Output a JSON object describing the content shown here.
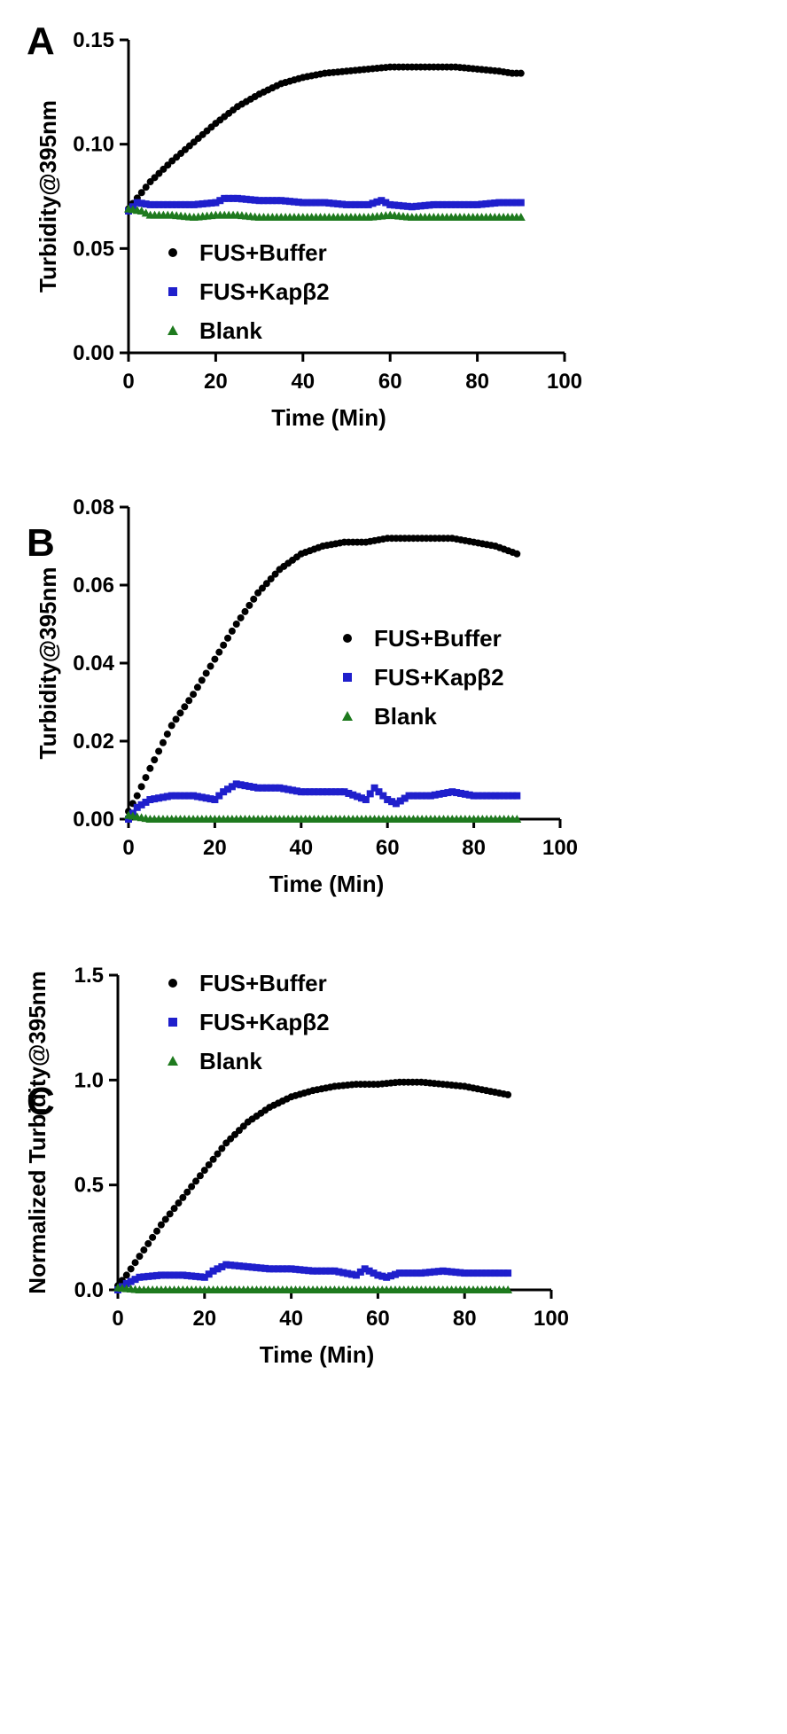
{
  "chart_data": [
    {
      "panel": "A",
      "type": "scatter",
      "xlabel": "Time (Min)",
      "ylabel": "Turbidity@395nm",
      "xlim": [
        0,
        100
      ],
      "ylim": [
        0,
        0.15
      ],
      "xticks": [
        "0",
        "20",
        "40",
        "60",
        "80",
        "100"
      ],
      "yticks": [
        "0.00",
        "0.05",
        "0.10",
        "0.15"
      ],
      "legend_position": "bottom-left",
      "series": [
        {
          "name": "FUS+Buffer",
          "marker": "circle",
          "color": "#000000",
          "x": [
            0,
            5,
            10,
            15,
            20,
            25,
            30,
            35,
            40,
            45,
            50,
            55,
            60,
            65,
            70,
            75,
            80,
            85,
            88,
            90
          ],
          "y": [
            0.069,
            0.082,
            0.092,
            0.101,
            0.11,
            0.118,
            0.124,
            0.129,
            0.132,
            0.134,
            0.135,
            0.136,
            0.137,
            0.137,
            0.137,
            0.137,
            0.136,
            0.135,
            0.134,
            0.134
          ]
        },
        {
          "name": "FUS+Kapβ2",
          "marker": "square",
          "color": "#1f1fcc",
          "x": [
            0,
            2,
            5,
            10,
            15,
            20,
            22,
            25,
            30,
            35,
            40,
            45,
            50,
            55,
            58,
            60,
            65,
            70,
            75,
            80,
            85,
            90
          ],
          "y": [
            0.068,
            0.072,
            0.071,
            0.071,
            0.071,
            0.072,
            0.074,
            0.074,
            0.073,
            0.073,
            0.072,
            0.072,
            0.071,
            0.071,
            0.073,
            0.071,
            0.07,
            0.071,
            0.071,
            0.071,
            0.072,
            0.072
          ]
        },
        {
          "name": "Blank",
          "marker": "triangle",
          "color": "#1e7a1e",
          "x": [
            0,
            3,
            5,
            10,
            15,
            20,
            25,
            30,
            35,
            40,
            45,
            50,
            55,
            60,
            65,
            70,
            75,
            80,
            85,
            90
          ],
          "y": [
            0.069,
            0.068,
            0.066,
            0.066,
            0.065,
            0.066,
            0.066,
            0.065,
            0.065,
            0.065,
            0.065,
            0.065,
            0.065,
            0.066,
            0.065,
            0.065,
            0.065,
            0.065,
            0.065,
            0.065
          ]
        }
      ]
    },
    {
      "panel": "B",
      "type": "scatter",
      "xlabel": "Time (Min)",
      "ylabel": "Turbidity@395nm",
      "xlim": [
        0,
        100
      ],
      "ylim": [
        0,
        0.08
      ],
      "xticks": [
        "0",
        "20",
        "40",
        "60",
        "80",
        "100"
      ],
      "yticks": [
        "0.00",
        "0.02",
        "0.04",
        "0.06",
        "0.08"
      ],
      "legend_position": "right",
      "series": [
        {
          "name": "FUS+Buffer",
          "marker": "circle",
          "color": "#000000",
          "x": [
            0,
            2,
            5,
            10,
            15,
            20,
            25,
            30,
            35,
            40,
            45,
            50,
            55,
            60,
            65,
            70,
            75,
            80,
            85,
            90
          ],
          "y": [
            0.002,
            0.006,
            0.013,
            0.024,
            0.032,
            0.041,
            0.05,
            0.058,
            0.064,
            0.068,
            0.07,
            0.071,
            0.071,
            0.072,
            0.072,
            0.072,
            0.072,
            0.071,
            0.07,
            0.068
          ]
        },
        {
          "name": "FUS+Kapβ2",
          "marker": "square",
          "color": "#1f1fcc",
          "x": [
            0,
            2,
            5,
            10,
            15,
            20,
            22,
            25,
            30,
            35,
            40,
            45,
            50,
            55,
            57,
            60,
            62,
            65,
            70,
            75,
            80,
            85,
            90
          ],
          "y": [
            0.0,
            0.003,
            0.005,
            0.006,
            0.006,
            0.005,
            0.007,
            0.009,
            0.008,
            0.008,
            0.007,
            0.007,
            0.007,
            0.005,
            0.008,
            0.005,
            0.004,
            0.006,
            0.006,
            0.007,
            0.006,
            0.006,
            0.006
          ]
        },
        {
          "name": "Blank",
          "marker": "triangle",
          "color": "#1e7a1e",
          "x": [
            0,
            5,
            10,
            15,
            20,
            25,
            30,
            35,
            40,
            45,
            50,
            55,
            60,
            65,
            70,
            75,
            80,
            85,
            90
          ],
          "y": [
            0.001,
            0.0,
            0.0,
            0.0,
            0.0,
            0.0,
            0.0,
            0.0,
            0.0,
            0.0,
            0.0,
            0.0,
            0.0,
            0.0,
            0.0,
            0.0,
            0.0,
            0.0,
            0.0
          ]
        }
      ]
    },
    {
      "panel": "C",
      "type": "scatter",
      "xlabel": "Time (Min)",
      "ylabel": "Normalized Turbidity@395nm",
      "xlim": [
        0,
        100
      ],
      "ylim": [
        0,
        1.5
      ],
      "xticks": [
        "0",
        "20",
        "40",
        "60",
        "80",
        "100"
      ],
      "yticks": [
        "0.0",
        "0.5",
        "1.0",
        "1.5"
      ],
      "legend_position": "top-left",
      "series": [
        {
          "name": "FUS+Buffer",
          "marker": "circle",
          "color": "#000000",
          "x": [
            0,
            2,
            5,
            10,
            15,
            20,
            25,
            30,
            35,
            40,
            45,
            50,
            55,
            60,
            65,
            70,
            75,
            80,
            85,
            90
          ],
          "y": [
            0.02,
            0.07,
            0.16,
            0.31,
            0.44,
            0.57,
            0.7,
            0.8,
            0.87,
            0.92,
            0.95,
            0.97,
            0.98,
            0.98,
            0.99,
            0.99,
            0.98,
            0.97,
            0.95,
            0.93
          ]
        },
        {
          "name": "FUS+Kapβ2",
          "marker": "square",
          "color": "#1f1fcc",
          "x": [
            0,
            2,
            5,
            10,
            15,
            20,
            22,
            25,
            30,
            35,
            40,
            45,
            50,
            55,
            57,
            60,
            62,
            65,
            70,
            75,
            80,
            85,
            90
          ],
          "y": [
            0.0,
            0.03,
            0.06,
            0.07,
            0.07,
            0.06,
            0.09,
            0.12,
            0.11,
            0.1,
            0.1,
            0.09,
            0.09,
            0.07,
            0.1,
            0.07,
            0.06,
            0.08,
            0.08,
            0.09,
            0.08,
            0.08,
            0.08
          ]
        },
        {
          "name": "Blank",
          "marker": "triangle",
          "color": "#1e7a1e",
          "x": [
            0,
            5,
            10,
            15,
            20,
            25,
            30,
            35,
            40,
            45,
            50,
            55,
            60,
            65,
            70,
            75,
            80,
            85,
            90
          ],
          "y": [
            0.01,
            0.0,
            0.0,
            0.0,
            0.0,
            0.0,
            0.0,
            0.0,
            0.0,
            0.0,
            0.0,
            0.0,
            0.0,
            0.0,
            0.0,
            0.0,
            0.0,
            0.0,
            0.0
          ]
        }
      ]
    }
  ]
}
